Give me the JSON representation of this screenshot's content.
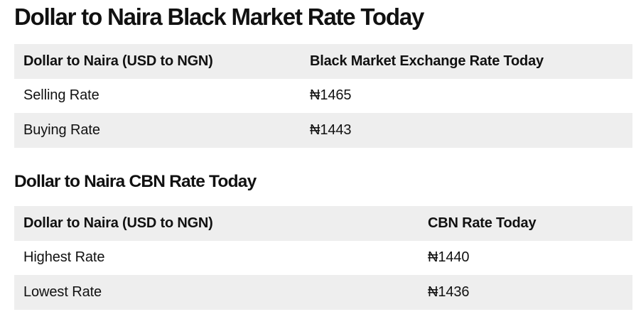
{
  "black_market": {
    "title": "Dollar to Naira Black Market Rate Today",
    "headers": [
      "Dollar to Naira (USD to NGN)",
      "Black Market Exchange Rate Today"
    ],
    "rows": [
      {
        "label": "Selling Rate",
        "value": "₦1465"
      },
      {
        "label": "Buying Rate",
        "value": "₦1443"
      }
    ]
  },
  "cbn": {
    "title": "Dollar to Naira CBN Rate Today",
    "headers": [
      "Dollar to Naira (USD to NGN)",
      "CBN Rate Today"
    ],
    "rows": [
      {
        "label": "Highest Rate",
        "value": "₦1440"
      },
      {
        "label": "Lowest Rate",
        "value": "₦1436"
      }
    ]
  },
  "colors": {
    "row_shade": "#eeeeee",
    "text": "#111111",
    "background": "#ffffff"
  }
}
